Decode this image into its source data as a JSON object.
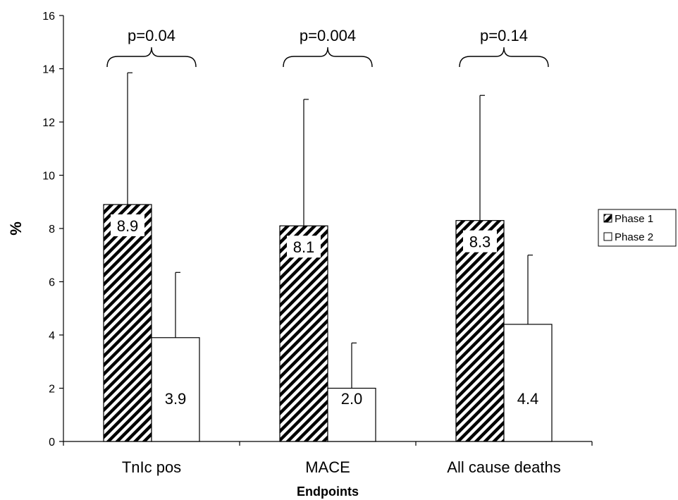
{
  "chart_data": {
    "type": "bar",
    "title": "",
    "xlabel": "Endpoints",
    "ylabel": "%",
    "ylim": [
      0,
      16
    ],
    "yticks": [
      0,
      2,
      4,
      6,
      8,
      10,
      12,
      14,
      16
    ],
    "grid": false,
    "legend": "right",
    "categories": [
      "TnIc pos",
      "MACE",
      "All cause deaths"
    ],
    "series": [
      {
        "name": "Phase 1",
        "pattern": "hatched",
        "values": [
          8.9,
          8.1,
          8.3
        ],
        "error_upper": [
          13.85,
          12.85,
          13.0
        ],
        "labels": [
          "8.9",
          "8.1",
          "8.3"
        ]
      },
      {
        "name": "Phase 2",
        "pattern": "white",
        "values": [
          3.9,
          2.0,
          4.4
        ],
        "error_upper": [
          6.35,
          3.7,
          7.0
        ],
        "labels": [
          "3.9",
          "2.0",
          "4.4"
        ]
      }
    ],
    "annotations": [
      "p=0.04",
      "p=0.004",
      "p=0.14"
    ],
    "colors": {
      "bar_stroke": "#000000",
      "hatch": "#000000",
      "fill": "#ffffff"
    }
  }
}
